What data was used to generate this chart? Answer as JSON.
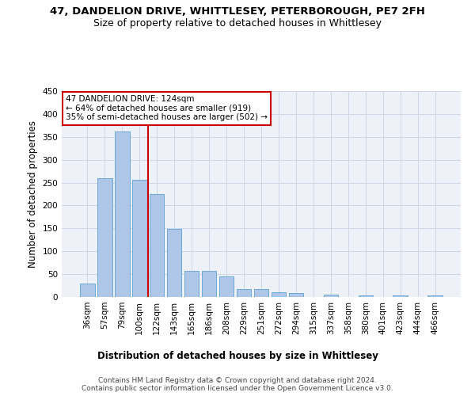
{
  "title_line1": "47, DANDELION DRIVE, WHITTLESEY, PETERBOROUGH, PE7 2FH",
  "title_line2": "Size of property relative to detached houses in Whittlesey",
  "xlabel": "Distribution of detached houses by size in Whittlesey",
  "ylabel": "Number of detached properties",
  "bin_labels": [
    "36sqm",
    "57sqm",
    "79sqm",
    "100sqm",
    "122sqm",
    "143sqm",
    "165sqm",
    "186sqm",
    "208sqm",
    "229sqm",
    "251sqm",
    "272sqm",
    "294sqm",
    "315sqm",
    "337sqm",
    "358sqm",
    "380sqm",
    "401sqm",
    "423sqm",
    "444sqm",
    "466sqm"
  ],
  "bar_values": [
    30,
    260,
    362,
    256,
    225,
    148,
    57,
    57,
    45,
    18,
    18,
    10,
    8,
    0,
    6,
    0,
    4,
    0,
    4,
    0,
    3
  ],
  "bar_color": "#aec6e8",
  "bar_edge_color": "#6aaad4",
  "vline_x": 3.5,
  "vline_color": "#cc0000",
  "annotation_text": "47 DANDELION DRIVE: 124sqm\n← 64% of detached houses are smaller (919)\n35% of semi-detached houses are larger (502) →",
  "annotation_box_color": "#ffffff",
  "annotation_box_edge_color": "#cc0000",
  "ylim": [
    0,
    450
  ],
  "yticks": [
    0,
    50,
    100,
    150,
    200,
    250,
    300,
    350,
    400,
    450
  ],
  "grid_color": "#d0d8e8",
  "bg_color": "#eef2f8",
  "footer_text": "Contains HM Land Registry data © Crown copyright and database right 2024.\nContains public sector information licensed under the Open Government Licence v3.0.",
  "title_fontsize": 9.5,
  "subtitle_fontsize": 9,
  "label_fontsize": 8.5,
  "tick_fontsize": 7.5,
  "footer_fontsize": 6.5,
  "annotation_fontsize": 7.5
}
